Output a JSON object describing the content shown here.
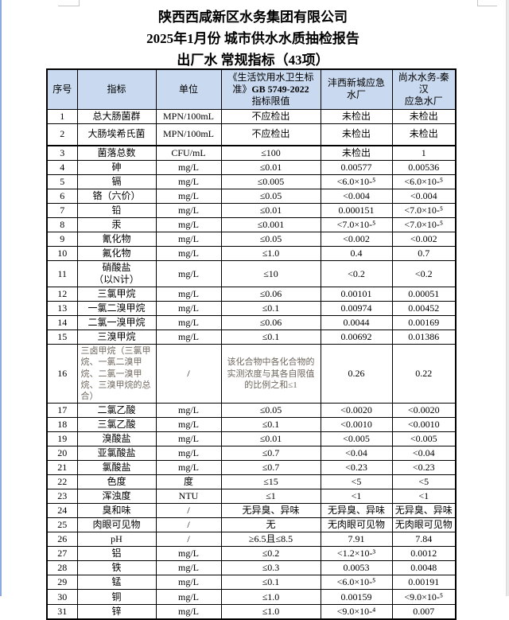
{
  "page": {
    "title_line1": "陕西西咸新区水务集团有限公司",
    "title_line2": "2025年1月份 城市供水水质抽检报告",
    "title_line3": "出厂水 常规指标（43项）"
  },
  "colors": {
    "header_bg": "#c9d9ef",
    "muted_text": "#6e675e",
    "left_edge": "#8ca9de",
    "right_edge": "#e9e9e9"
  },
  "table": {
    "headers": {
      "no": "序号",
      "indicator": "指标",
      "unit": "单位",
      "std_prefix": "《生活饮用水卫生标准》",
      "std_code": "GB 5749-2022",
      "std_suffix": "指标限值",
      "plant1": "沣西新城应急\n水厂",
      "plant2": "尚水水务-秦汉\n应急水厂"
    },
    "rows": [
      {
        "no": "1",
        "indicator": "总大肠菌群",
        "unit": "MPN/100mL",
        "limit": "不应检出",
        "plant1": "未检出",
        "plant2": "未检出"
      },
      {
        "no": "2",
        "indicator": "大肠埃希氏菌",
        "unit": "MPN/100mL",
        "limit": "不应检出",
        "plant1": "未检出",
        "plant2": "未检出"
      },
      {
        "no": "3",
        "indicator": "菌落总数",
        "unit": "CFU/mL",
        "limit": "≤100",
        "plant1": "未检出",
        "plant2": "1"
      },
      {
        "no": "4",
        "indicator": "砷",
        "unit": "mg/L",
        "limit": "≤0.01",
        "plant1": "0.00577",
        "plant2": "0.00536"
      },
      {
        "no": "5",
        "indicator": "镉",
        "unit": "mg/L",
        "limit": "≤0.005",
        "plant1": "<6.0×10-⁵",
        "plant2": "<6.0×10-⁵"
      },
      {
        "no": "6",
        "indicator": "铬（六价）",
        "unit": "mg/L",
        "limit": "≤0.05",
        "plant1": "<0.004",
        "plant2": "<0.004"
      },
      {
        "no": "7",
        "indicator": "铅",
        "unit": "mg/L",
        "limit": "≤0.01",
        "plant1": "0.000151",
        "plant2": "<7.0×10-⁵"
      },
      {
        "no": "8",
        "indicator": "汞",
        "unit": "mg/L",
        "limit": "≤0.001",
        "plant1": "<7.0×10-⁵",
        "plant2": "<7.0×10-⁵"
      },
      {
        "no": "9",
        "indicator": "氰化物",
        "unit": "mg/L",
        "limit": "≤0.05",
        "plant1": "<0.002",
        "plant2": "<0.002"
      },
      {
        "no": "10",
        "indicator": "氟化物",
        "unit": "mg/L",
        "limit": "≤1.0",
        "plant1": "0.4",
        "plant2": "0.7"
      },
      {
        "no": "11",
        "indicator": "硝酸盐\n（以N计）",
        "unit": "mg/L",
        "limit": "≤10",
        "plant1": "<0.2",
        "plant2": "<0.2"
      },
      {
        "no": "12",
        "indicator": "三氯甲烷",
        "unit": "mg/L",
        "limit": "≤0.06",
        "plant1": "0.00101",
        "plant2": "0.00051"
      },
      {
        "no": "13",
        "indicator": "一氯二溴甲烷",
        "unit": "mg/L",
        "limit": "≤0.1",
        "plant1": "0.00974",
        "plant2": "0.00452"
      },
      {
        "no": "14",
        "indicator": "二氯一溴甲烷",
        "unit": "mg/L",
        "limit": "≤0.06",
        "plant1": "0.0044",
        "plant2": "0.00169"
      },
      {
        "no": "15",
        "indicator": "三溴甲烷",
        "unit": "mg/L",
        "limit": "≤0.1",
        "plant1": "0.00692",
        "plant2": "0.01386"
      },
      {
        "no": "16",
        "indicator": "三卤甲烷（三氯甲烷、一氯二溴甲烷、二氯一溴甲烷、三溴甲烷的总合）",
        "unit": "/",
        "limit": "该化合物中各化合物的实测浓度与其各自限值的比例之和≤1",
        "plant1": "0.26",
        "plant2": "0.22",
        "muted": true
      },
      {
        "no": "17",
        "indicator": "二氯乙酸",
        "unit": "mg/L",
        "limit": "≤0.05",
        "plant1": "<0.0020",
        "plant2": "<0.0020"
      },
      {
        "no": "18",
        "indicator": "三氯乙酸",
        "unit": "mg/L",
        "limit": "≤0.1",
        "plant1": "<0.0010",
        "plant2": "<0.0010"
      },
      {
        "no": "19",
        "indicator": "溴酸盐",
        "unit": "mg/L",
        "limit": "≤0.01",
        "plant1": "<0.005",
        "plant2": "<0.005"
      },
      {
        "no": "20",
        "indicator": "亚氯酸盐",
        "unit": "mg/L",
        "limit": "≤0.7",
        "plant1": "<0.04",
        "plant2": "<0.04"
      },
      {
        "no": "21",
        "indicator": "氯酸盐",
        "unit": "mg/L",
        "limit": "≤0.7",
        "plant1": "<0.23",
        "plant2": "<0.23"
      },
      {
        "no": "22",
        "indicator": "色度",
        "unit": "度",
        "limit": "≤15",
        "plant1": "<5",
        "plant2": "<5"
      },
      {
        "no": "23",
        "indicator": "浑浊度",
        "unit": "NTU",
        "limit": "≤1",
        "plant1": "<1",
        "plant2": "<1"
      },
      {
        "no": "24",
        "indicator": "臭和味",
        "unit": "/",
        "limit": "无异臭、异味",
        "plant1": "无异臭、异味",
        "plant2": "无异臭、异味"
      },
      {
        "no": "25",
        "indicator": "肉眼可见物",
        "unit": "/",
        "limit": "无",
        "plant1": "无肉眼可见物",
        "plant2": "无肉眼可见物"
      },
      {
        "no": "26",
        "indicator": "pH",
        "unit": "/",
        "limit": "≥6.5且≤8.5",
        "plant1": "7.91",
        "plant2": "7.84"
      },
      {
        "no": "27",
        "indicator": "铝",
        "unit": "mg/L",
        "limit": "≤0.2",
        "plant1": "<1.2×10-³",
        "plant2": "0.0012"
      },
      {
        "no": "28",
        "indicator": "铁",
        "unit": "mg/L",
        "limit": "≤0.3",
        "plant1": "0.0053",
        "plant2": "0.0048"
      },
      {
        "no": "29",
        "indicator": "锰",
        "unit": "mg/L",
        "limit": "≤0.1",
        "plant1": "<6.0×10-⁵",
        "plant2": "0.00191"
      },
      {
        "no": "30",
        "indicator": "铜",
        "unit": "mg/L",
        "limit": "≤1.0",
        "plant1": "0.00159",
        "plant2": "<9.0×10-⁵"
      },
      {
        "no": "31",
        "indicator": "锌",
        "unit": "mg/L",
        "limit": "≤1.0",
        "plant1": "<9.0×10-⁴",
        "plant2": "0.007"
      }
    ]
  }
}
